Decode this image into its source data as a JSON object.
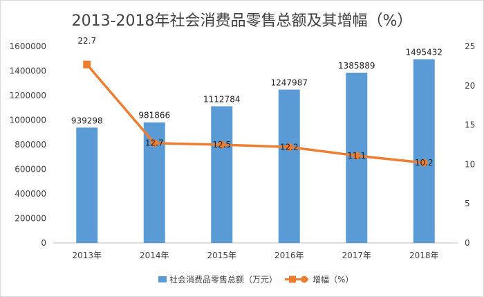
{
  "chart_data": {
    "type": "bar",
    "title": "2013-2018年社会消费品零售总额及其增幅（%）",
    "categories": [
      "2013年",
      "2014年",
      "2015年",
      "2016年",
      "2017年",
      "2018年"
    ],
    "series": [
      {
        "name": "社会消费品零售总额（万元）",
        "type": "bar",
        "axis": "left",
        "values": [
          939298,
          981866,
          1112784,
          1247987,
          1385889,
          1495432
        ],
        "color": "#5b9bd5"
      },
      {
        "name": "增幅（%）",
        "type": "line",
        "axis": "right",
        "values": [
          22.7,
          12.7,
          12.5,
          12.2,
          11.1,
          10.2
        ],
        "color": "#ed7d31"
      }
    ],
    "ylim_left": [
      0,
      1600000
    ],
    "ylim_right": [
      0,
      25
    ],
    "yticks_left": [
      "0",
      "200000",
      "400000",
      "600000",
      "800000",
      "1000000",
      "1200000",
      "1400000",
      "1600000"
    ],
    "yticks_right": [
      "0",
      "5",
      "10",
      "15",
      "20",
      "25"
    ],
    "grid": false,
    "legend_position": "bottom"
  }
}
